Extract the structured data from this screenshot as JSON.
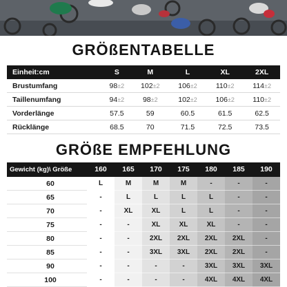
{
  "size_chart": {
    "title": "GRÖßENTABELLE",
    "unit_label": "Einheit:cm",
    "sizes": [
      "S",
      "M",
      "L",
      "XL",
      "2XL"
    ],
    "tolerance": "±2",
    "rows": [
      {
        "label": "Brustumfang",
        "values": [
          "98",
          "102",
          "106",
          "110",
          "114"
        ],
        "tolerance": true
      },
      {
        "label": "Taillenumfang",
        "values": [
          "94",
          "98",
          "102",
          "106",
          "110"
        ],
        "tolerance": true
      },
      {
        "label": "Vorderlänge",
        "values": [
          "57.5",
          "59",
          "60.5",
          "61.5",
          "62.5"
        ],
        "tolerance": false
      },
      {
        "label": "Rücklänge",
        "values": [
          "68.5",
          "70",
          "71.5",
          "72.5",
          "73.5"
        ],
        "tolerance": false
      }
    ]
  },
  "recommendation": {
    "title": "GRÖßE EMPFEHLUNG",
    "corner_label": "Gewicht (kg)\\ Größe (cm)",
    "heights": [
      "160",
      "165",
      "170",
      "175",
      "180",
      "185",
      "190"
    ],
    "column_shades": [
      "#ffffff",
      "#f1f1f1",
      "#e2e2e2",
      "#d2d2d2",
      "#c3c3c3",
      "#b4b4b4",
      "#a5a5a5"
    ],
    "rows": [
      {
        "weight": "60",
        "values": [
          "L",
          "M",
          "M",
          "M",
          "-",
          "-",
          "-"
        ]
      },
      {
        "weight": "65",
        "values": [
          "-",
          "L",
          "L",
          "L",
          "L",
          "-",
          "-"
        ]
      },
      {
        "weight": "70",
        "values": [
          "-",
          "XL",
          "XL",
          "L",
          "L",
          "-",
          "-"
        ]
      },
      {
        "weight": "75",
        "values": [
          "-",
          "-",
          "XL",
          "XL",
          "XL",
          "-",
          "-"
        ]
      },
      {
        "weight": "80",
        "values": [
          "-",
          "-",
          "2XL",
          "2XL",
          "2XL",
          "2XL",
          "-"
        ]
      },
      {
        "weight": "85",
        "values": [
          "-",
          "-",
          "3XL",
          "3XL",
          "2XL",
          "2XL",
          "-"
        ]
      },
      {
        "weight": "90",
        "values": [
          "-",
          "-",
          "-",
          "-",
          "3XL",
          "3XL",
          "3XL"
        ]
      },
      {
        "weight": "100",
        "values": [
          "-",
          "-",
          "-",
          "-",
          "4XL",
          "4XL",
          "4XL"
        ]
      }
    ]
  }
}
